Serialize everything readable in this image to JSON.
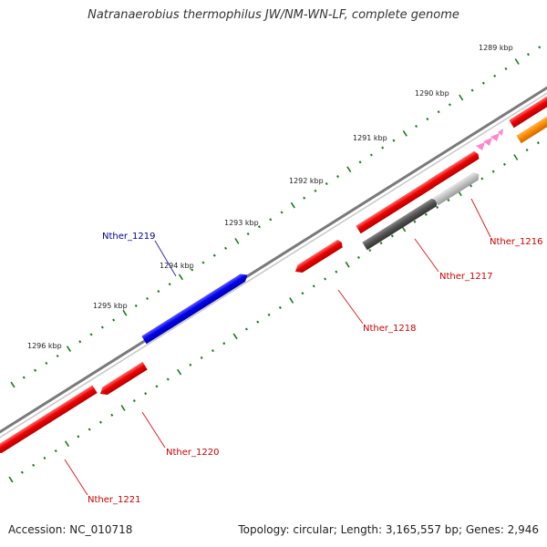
{
  "title": "Natranaerobius thermophilus JW/NM-WN-LF, complete genome",
  "footer": {
    "accession": "Accession: NC_010718",
    "summary": "Topology: circular; Length: 3,165,557 bp; Genes: 2,946"
  },
  "colors": {
    "backbone": "#7a7a7a",
    "tick": "#1a7a1a",
    "red_gene": "#ee0000",
    "blue_gene": "#0000ee",
    "dark_gene": "#555555",
    "light_gene": "#c8c8c8",
    "orange_gene": "#ff8c00",
    "pink_feature": "#ff88cc",
    "red_label": "#cc0000",
    "blue_label": "#000099"
  },
  "kbp_markers": [
    "1289 kbp",
    "1290 kbp",
    "1291 kbp",
    "1292 kbp",
    "1293 kbp",
    "1294 kbp",
    "1295 kbp",
    "1296 kbp"
  ],
  "gene_labels": [
    {
      "id": "nther-1216",
      "text": "Nther_1216",
      "color": "red"
    },
    {
      "id": "nther-1217",
      "text": "Nther_1217",
      "color": "red"
    },
    {
      "id": "nther-1218",
      "text": "Nther_1218",
      "color": "red"
    },
    {
      "id": "nther-1219",
      "text": "Nther_1219",
      "color": "blue"
    },
    {
      "id": "nther-1220",
      "text": "Nther_1220",
      "color": "red"
    },
    {
      "id": "nther-1221",
      "text": "Nther_1221",
      "color": "red"
    }
  ]
}
